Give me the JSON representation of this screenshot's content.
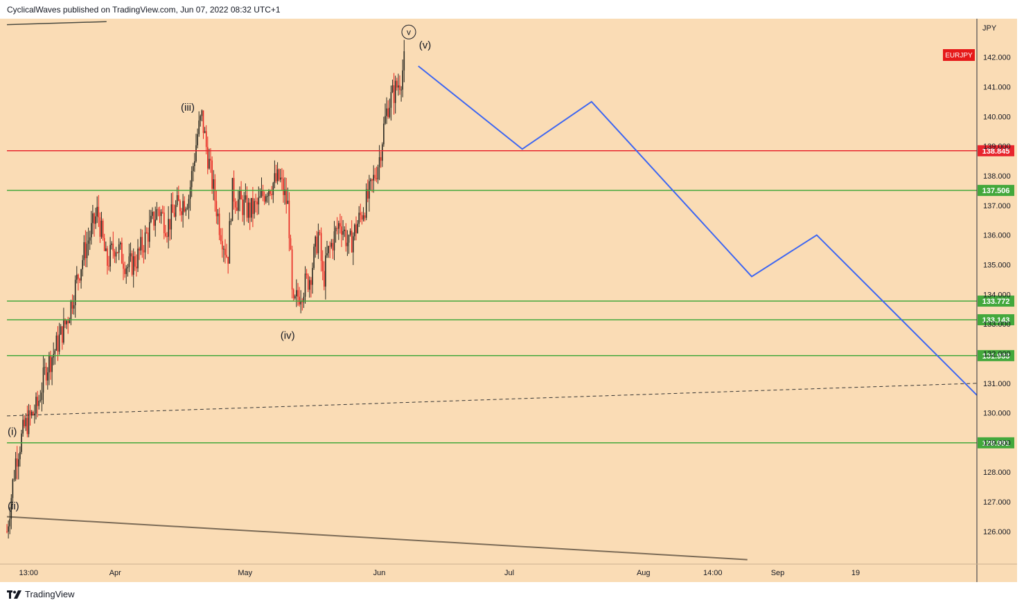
{
  "header": {
    "publisher_line": "CyclicalWaves published on TradingView.com, Jun 07, 2022 08:32 UTC+1"
  },
  "footer": {
    "brand": "TradingView"
  },
  "colors": {
    "background": "#fadcb5",
    "candle_up": "#26261f",
    "candle_down": "#e8241e",
    "projection": "#3d66f2",
    "resistance": "#e8252d",
    "support": "#43a83c",
    "trendline": "#7a6a56",
    "symbol_badge": "#e61919"
  },
  "chart_data": {
    "type": "candlestick",
    "symbol": "EURJPY",
    "currency_label": "JPY",
    "y_range": [
      125,
      143
    ],
    "y_ticks": [
      "126.000",
      "127.000",
      "128.000",
      "129.000",
      "130.000",
      "131.000",
      "132.000",
      "133.000",
      "134.000",
      "135.000",
      "136.000",
      "137.000",
      "138.000",
      "139.000",
      "140.000",
      "141.000",
      "142.000"
    ],
    "x_ticks": [
      "13:00",
      "Apr",
      "May",
      "Jun",
      "Jul",
      "Aug",
      "14:00",
      "Sep",
      "19"
    ],
    "horizontal_levels": [
      {
        "price": 138.845,
        "label": "138.845",
        "kind": "resistance"
      },
      {
        "price": 137.506,
        "label": "137.506",
        "kind": "support"
      },
      {
        "price": 133.772,
        "label": "133.772",
        "kind": "support"
      },
      {
        "price": 133.143,
        "label": "133.143",
        "kind": "support"
      },
      {
        "price": 131.933,
        "label": "131.933",
        "kind": "support"
      },
      {
        "price": 128.991,
        "label": "128.991",
        "kind": "support"
      }
    ],
    "wave_labels": [
      "(i)",
      "(ii)",
      "(iii)",
      "(iv)",
      "(v)",
      "v"
    ],
    "price_path": [
      [
        "Mar 07",
        126.0
      ],
      [
        "Mar 09",
        128.4
      ],
      [
        "Mar 11",
        129.5
      ],
      [
        "Mar 14",
        130.2
      ],
      [
        "Mar 16",
        131.5
      ],
      [
        "Mar 18",
        132.1
      ],
      [
        "Mar 21",
        133.2
      ],
      [
        "Mar 23",
        134.4
      ],
      [
        "Mar 25",
        135.5
      ],
      [
        "Mar 28",
        136.8
      ],
      [
        "Mar 30",
        135.0
      ],
      [
        "Apr 01",
        135.7
      ],
      [
        "Apr 04",
        134.9
      ],
      [
        "Apr 06",
        135.2
      ],
      [
        "Apr 08",
        135.9
      ],
      [
        "Apr 11",
        136.9
      ],
      [
        "Apr 13",
        136.3
      ],
      [
        "Apr 15",
        136.9
      ],
      [
        "Apr 18",
        137.3
      ],
      [
        "Apr 20",
        139.4
      ],
      [
        "Apr 21",
        140.0
      ],
      [
        "Apr 22",
        139.0
      ],
      [
        "Apr 25",
        136.4
      ],
      [
        "Apr 27",
        135.2
      ],
      [
        "Apr 28",
        137.5
      ],
      [
        "Apr 29",
        137.2
      ],
      [
        "May 02",
        136.8
      ],
      [
        "May 04",
        137.0
      ],
      [
        "May 06",
        137.6
      ],
      [
        "May 09",
        137.9
      ],
      [
        "May 11",
        136.9
      ],
      [
        "May 12",
        133.4
      ],
      [
        "May 13",
        133.9
      ],
      [
        "May 16",
        134.6
      ],
      [
        "May 18",
        136.1
      ],
      [
        "May 19",
        134.4
      ],
      [
        "May 20",
        135.3
      ],
      [
        "May 23",
        136.5
      ],
      [
        "May 25",
        135.6
      ],
      [
        "May 27",
        136.4
      ],
      [
        "May 30",
        137.5
      ],
      [
        "Jun 01",
        138.6
      ],
      [
        "Jun 02",
        139.6
      ],
      [
        "Jun 03",
        140.4
      ],
      [
        "Jun 06",
        141.3
      ],
      [
        "Jun 07",
        142.0
      ]
    ],
    "projection_path": [
      [
        "Jun 10",
        141.7
      ],
      [
        "Jul 04",
        138.9
      ],
      [
        "Jul 20",
        140.5
      ],
      [
        "Aug 26",
        134.6
      ],
      [
        "Sep 10",
        136.0
      ],
      [
        "Oct 17",
        130.6
      ]
    ],
    "dashed_line": [
      [
        "Mar 07",
        129.9
      ],
      [
        "Oct 17",
        131.0
      ]
    ],
    "upper_trendline": [
      [
        "Mar 07",
        143.1
      ],
      [
        "Mar 30",
        143.2
      ]
    ],
    "lower_trendline": [
      [
        "Mar 07",
        126.5
      ],
      [
        "Aug 25",
        125.05
      ]
    ]
  }
}
